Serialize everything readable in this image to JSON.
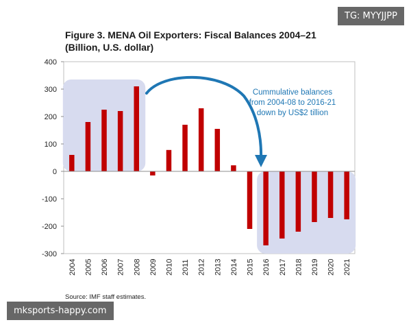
{
  "title_line1": "Figure 3. MENA Oil Exporters: Fiscal Balances 2004–21",
  "title_line2": "(Billion, U.S. dollar)",
  "source": "Source: IMF staff estimates.",
  "watermark_top": "TG: MYYJJPP",
  "watermark_bottom": "mksports-happy.com",
  "colors": {
    "bar": "#c00000",
    "highlight": "#d7dbef",
    "annotation": "#1f77b4",
    "axis": "#8c8c8c",
    "frame": "#bfbfbf"
  },
  "chart_data": {
    "type": "bar",
    "title": "Figure 3. MENA Oil Exporters: Fiscal Balances 2004–21",
    "subtitle": "(Billion, U.S. dollar)",
    "categories": [
      "2004",
      "2005",
      "2006",
      "2007",
      "2008",
      "2009",
      "2010",
      "2011",
      "2012",
      "2013",
      "2014",
      "2015",
      "2016",
      "2017",
      "2018",
      "2019",
      "2020",
      "2021"
    ],
    "values": [
      60,
      180,
      225,
      220,
      310,
      -15,
      78,
      170,
      230,
      155,
      22,
      -210,
      -270,
      -245,
      -220,
      -185,
      -170,
      -175
    ],
    "ylim": [
      -300,
      400
    ],
    "yticks": [
      400,
      300,
      200,
      100,
      0,
      -100,
      -200,
      -300
    ],
    "grid": false,
    "annotation": {
      "lines": [
        "Cummulative balances",
        "from 2004-08 to 2016-21",
        "down by US$2 tillion"
      ]
    },
    "highlight_ranges": [
      [
        "2004",
        "2008"
      ],
      [
        "2016",
        "2021"
      ]
    ]
  }
}
